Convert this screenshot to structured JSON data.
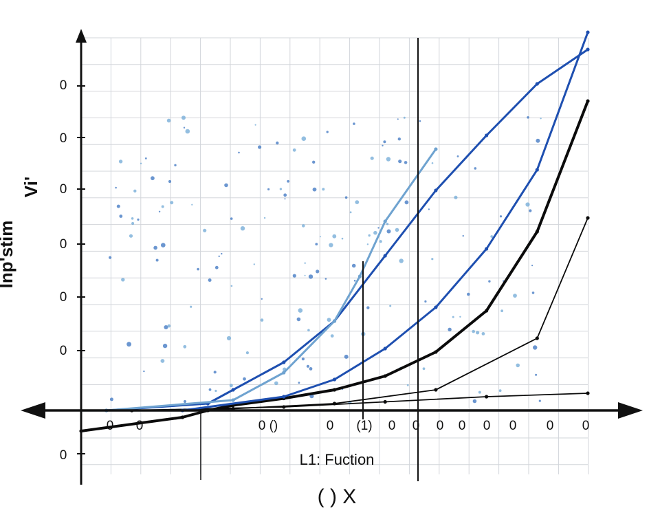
{
  "chart_data": {
    "type": "line",
    "x_label": "( ) X",
    "y_label": "Inp'stim",
    "y_label_top": "Vi'",
    "inner_label": "L1: Fuction",
    "x_tick_labels": [
      "0",
      "0",
      "0 ()",
      "0",
      "(1)",
      "0",
      "0",
      "0",
      "0",
      "0",
      "0",
      "0",
      "0",
      "0"
    ],
    "y_tick_labels": [
      "0",
      "0",
      "0",
      "0",
      "0",
      "0",
      "0"
    ],
    "grid": true,
    "series": [
      {
        "color": "#0b0b0b",
        "x": [
          0,
          0.2,
          0.25,
          0.3,
          0.4,
          0.5,
          0.6,
          0.7,
          0.8,
          0.9,
          1
        ],
        "y": [
          -0.6,
          -0.2,
          0,
          0.15,
          0.35,
          0.6,
          1,
          1.7,
          2.9,
          5.2,
          9
        ]
      },
      {
        "color": "#0b0b0b",
        "x": [
          0.1,
          0.3,
          0.5,
          0.7,
          0.9,
          1
        ],
        "y": [
          0,
          0.05,
          0.2,
          0.6,
          2.1,
          5.6
        ]
      },
      {
        "color": "#0b0b0b",
        "x": [
          0.1,
          0.4,
          0.6,
          0.8,
          1
        ],
        "y": [
          0,
          0.1,
          0.25,
          0.4,
          0.5
        ]
      },
      {
        "color": "#1e4fb0",
        "x": [
          0.05,
          0.25,
          0.3,
          0.4,
          0.5,
          0.6,
          0.7,
          0.8,
          0.9,
          1
        ],
        "y": [
          0,
          0.2,
          0.6,
          1.4,
          2.6,
          4.5,
          6.4,
          8,
          9.5,
          10.5
        ]
      },
      {
        "color": "#1e4fb0",
        "x": [
          0.2,
          0.4,
          0.5,
          0.6,
          0.7,
          0.8,
          0.9,
          1
        ],
        "y": [
          0,
          0.4,
          0.9,
          1.8,
          3,
          4.7,
          7,
          11
        ]
      },
      {
        "color": "#6fa3d0",
        "x": [
          0.05,
          0.3,
          0.4,
          0.5,
          0.55,
          0.6,
          0.7
        ],
        "y": [
          0,
          0.3,
          1.1,
          2.6,
          3.9,
          5.5,
          7.6
        ]
      }
    ]
  }
}
